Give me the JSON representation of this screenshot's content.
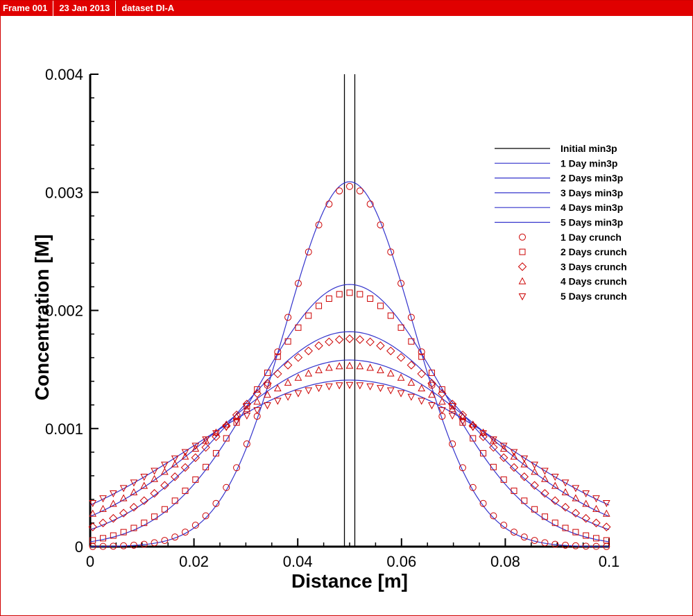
{
  "header": {
    "frame_label": "Frame 001",
    "date": "23 Jan 2013",
    "dataset": "dataset DI-A"
  },
  "colors": {
    "header_bg": "#e00000",
    "model_line": "#3333cc",
    "initial_line": "#000000",
    "marker": "#cc0000"
  },
  "chart_data": {
    "type": "line",
    "xlabel": "Distance [m]",
    "ylabel": "Concentration [M]",
    "xlim": [
      0,
      0.1
    ],
    "ylim": [
      0,
      0.004
    ],
    "x_ticks": [
      0,
      0.02,
      0.04,
      0.06,
      0.08,
      0.1
    ],
    "x_tick_labels": [
      "0",
      "0.02",
      "0.04",
      "0.06",
      "0.08",
      "0.1"
    ],
    "y_ticks": [
      0,
      0.001,
      0.002,
      0.003,
      0.004
    ],
    "y_tick_labels": [
      "0",
      "0.001",
      "0.002",
      "0.003",
      "0.004"
    ],
    "grid": false,
    "legend_position": "top-right",
    "initial": {
      "name": "Initial min3p",
      "x_left": 0.049,
      "x_right": 0.051,
      "peak": 0.004
    },
    "series": [
      {
        "name": "1 Day min3p",
        "kind": "line",
        "peak": 0.00309,
        "width": 0.0123
      },
      {
        "name": "2 Days min3p",
        "kind": "line",
        "peak": 0.00222,
        "width": 0.0177
      },
      {
        "name": "3 Days min3p",
        "kind": "line",
        "peak": 0.00182,
        "width": 0.0222
      },
      {
        "name": "4 Days min3p",
        "kind": "line",
        "peak": 0.00158,
        "width": 0.0262
      },
      {
        "name": "5 Days min3p",
        "kind": "line",
        "peak": 0.00141,
        "width": 0.03
      },
      {
        "name": "1 Day crunch",
        "kind": "marker",
        "marker": "circle",
        "peak": 0.00305,
        "width": 0.0125
      },
      {
        "name": "2 Days crunch",
        "kind": "marker",
        "marker": "square",
        "peak": 0.00215,
        "width": 0.0182
      },
      {
        "name": "3 Days crunch",
        "kind": "marker",
        "marker": "diamond",
        "peak": 0.00176,
        "width": 0.0228
      },
      {
        "name": "4 Days crunch",
        "kind": "marker",
        "marker": "triangle-up",
        "peak": 0.00153,
        "width": 0.0268
      },
      {
        "name": "5 Days crunch",
        "kind": "marker",
        "marker": "triangle-down",
        "peak": 0.00137,
        "width": 0.0306
      }
    ]
  }
}
